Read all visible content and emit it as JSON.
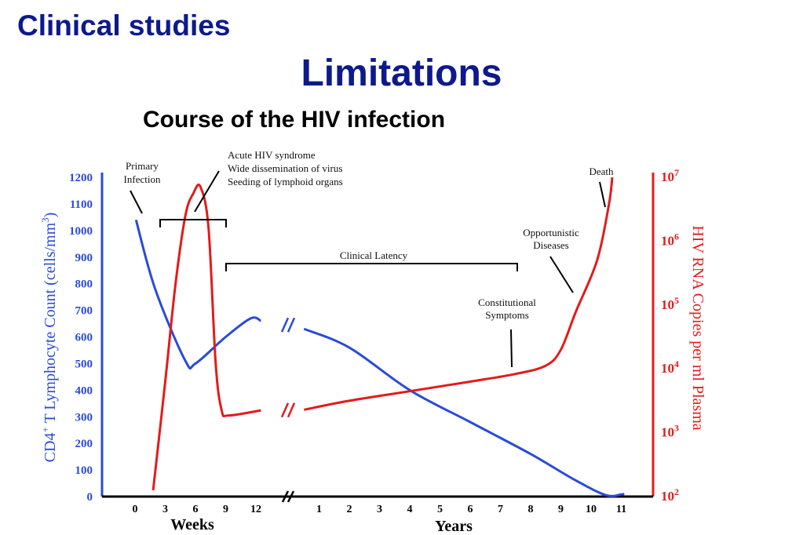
{
  "slide": {
    "section_title": "Clinical studies",
    "title": "Limitations",
    "subtitle": "Course of the HIV infection"
  },
  "chart_data": {
    "type": "line",
    "title": "",
    "x_axis": {
      "weeks_ticks": [
        "0",
        "3",
        "6",
        "9",
        "12"
      ],
      "weeks_label": "Weeks",
      "years_ticks": [
        "1",
        "2",
        "3",
        "4",
        "5",
        "6",
        "7",
        "8",
        "9",
        "10",
        "11"
      ],
      "years_label": "Years"
    },
    "y_left": {
      "label_main": "CD4",
      "label_sup": "+",
      "label_rest": " T Lymphocyte Count (cells/mm",
      "label_sup2": "3",
      "label_end": ")",
      "ticks": [
        "0",
        "100",
        "200",
        "300",
        "400",
        "500",
        "600",
        "700",
        "800",
        "900",
        "1000",
        "1100",
        "1200"
      ],
      "ylim": [
        0,
        1200
      ],
      "color": "#2a4bd7"
    },
    "y_right": {
      "label": "HIV RNA Copies per ml Plasma",
      "tick_base": "10",
      "tick_exponents": [
        "2",
        "3",
        "4",
        "5",
        "6",
        "7"
      ],
      "ylim_log10": [
        2,
        7
      ],
      "scale": "log",
      "color": "#e31b1b"
    },
    "series": [
      {
        "name": "CD4+ T Lymphocyte Count",
        "axis": "left",
        "color": "#2a4bd7",
        "weeks_points": [
          [
            0.1,
            1040
          ],
          [
            2,
            780
          ],
          [
            5,
            510
          ],
          [
            6,
            500
          ],
          [
            9,
            600
          ],
          [
            11.5,
            670
          ],
          [
            12.5,
            660
          ]
        ],
        "years_points": [
          [
            0.5,
            630
          ],
          [
            2,
            560
          ],
          [
            4,
            400
          ],
          [
            6,
            280
          ],
          [
            8,
            160
          ],
          [
            9.5,
            60
          ],
          [
            10.5,
            5
          ],
          [
            11,
            8
          ],
          [
            11.1,
            10
          ]
        ]
      },
      {
        "name": "HIV RNA Copies per ml Plasma",
        "axis": "right",
        "color": "#e31b1b",
        "weeks_points": [
          [
            1.8,
            2.1
          ],
          [
            3,
            3.8
          ],
          [
            4,
            5.3
          ],
          [
            5,
            6.4
          ],
          [
            5.8,
            6.75
          ],
          [
            6.5,
            6.85
          ],
          [
            7.3,
            6.2
          ],
          [
            8,
            4.1
          ],
          [
            8.6,
            3.35
          ],
          [
            9.3,
            3.27
          ],
          [
            12.5,
            3.35
          ]
        ],
        "years_points": [
          [
            0.5,
            3.36
          ],
          [
            2,
            3.5
          ],
          [
            4,
            3.65
          ],
          [
            6,
            3.8
          ],
          [
            7.5,
            3.92
          ],
          [
            8.5,
            4.05
          ],
          [
            9,
            4.3
          ],
          [
            9.5,
            4.9
          ],
          [
            10.2,
            5.7
          ],
          [
            10.6,
            6.6
          ],
          [
            10.7,
            7.0
          ]
        ]
      }
    ],
    "annotations": [
      {
        "id": "primary",
        "lines": [
          "Primary",
          "Infection"
        ]
      },
      {
        "id": "acute",
        "lines": [
          "Acute HIV syndrome",
          "Wide dissemination of virus",
          "Seeding of lymphoid organs"
        ]
      },
      {
        "id": "latency",
        "lines": [
          "Clinical Latency"
        ]
      },
      {
        "id": "constitutional",
        "lines": [
          "Constitutional",
          "Symptoms"
        ]
      },
      {
        "id": "opportunistic",
        "lines": [
          "Opportunistic",
          "Diseases"
        ]
      },
      {
        "id": "death",
        "lines": [
          "Death"
        ]
      }
    ]
  }
}
